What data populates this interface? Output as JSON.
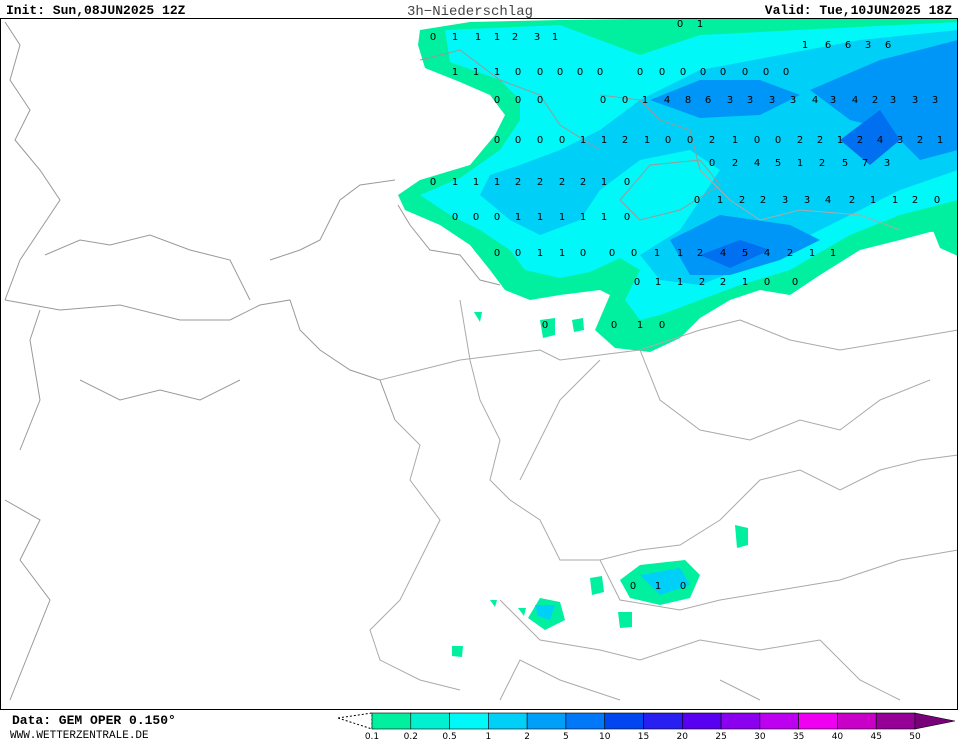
{
  "header": {
    "init": "Init:  Sun,08JUN2025  12Z",
    "title": "3h−Niederschlag",
    "valid": "Valid:  Tue,10JUN2025  18Z"
  },
  "footer": {
    "data": "Data:  GEM  OPER  0.150°",
    "site": "WWW.WETTERZENTRALE.DE"
  },
  "legend": {
    "labels": [
      0.1,
      0.2,
      0.5,
      1,
      2,
      5,
      10,
      15,
      20,
      25,
      30,
      35,
      40,
      45,
      50
    ],
    "colors": [
      "#00f0a0",
      "#00f0d0",
      "#00f8f8",
      "#00d0f8",
      "#00a0f8",
      "#0078f8",
      "#0046f0",
      "#2820f0",
      "#5a00f0",
      "#8c00f0",
      "#be00f0",
      "#f000f0",
      "#c800c8",
      "#960096"
    ]
  },
  "map_labels": [
    0,
    1,
    1,
    1,
    2,
    3,
    1,
    0,
    1,
    1,
    1,
    1,
    0,
    0,
    0,
    0,
    0,
    0,
    0,
    0,
    0,
    0,
    0,
    0,
    0,
    1,
    6,
    6,
    3,
    6,
    0,
    0,
    0,
    0,
    0,
    1,
    4,
    8,
    6,
    3,
    3,
    3,
    3,
    4,
    3,
    4,
    2,
    3,
    3,
    3,
    0,
    0,
    0,
    0,
    1,
    1,
    2,
    1,
    0,
    0,
    2,
    1,
    0,
    0,
    2,
    2,
    1,
    2,
    4,
    3,
    2,
    1,
    0,
    1,
    1,
    1,
    2,
    2,
    2,
    2,
    1,
    0,
    0,
    2,
    4,
    5,
    1,
    2,
    5,
    7,
    3,
    0,
    0,
    0,
    1,
    1,
    1,
    1,
    1,
    0,
    0,
    1,
    2,
    2,
    3,
    3,
    4,
    2,
    1,
    1,
    2,
    0,
    0,
    0,
    1,
    1,
    0,
    0,
    0,
    1,
    1,
    2,
    4,
    5,
    4,
    2,
    1,
    1,
    0,
    1,
    1,
    2,
    2,
    1,
    0,
    0,
    0,
    0,
    1,
    0,
    0,
    1,
    0
  ]
}
